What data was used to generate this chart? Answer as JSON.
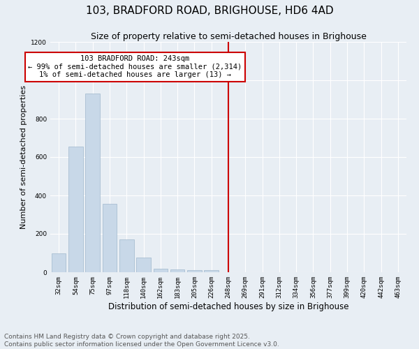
{
  "title": "103, BRADFORD ROAD, BRIGHOUSE, HD6 4AD",
  "subtitle": "Size of property relative to semi-detached houses in Brighouse",
  "xlabel": "Distribution of semi-detached houses by size in Brighouse",
  "ylabel": "Number of semi-detached properties",
  "bins": [
    "32sqm",
    "54sqm",
    "75sqm",
    "97sqm",
    "118sqm",
    "140sqm",
    "162sqm",
    "183sqm",
    "205sqm",
    "226sqm",
    "248sqm",
    "269sqm",
    "291sqm",
    "312sqm",
    "334sqm",
    "356sqm",
    "377sqm",
    "399sqm",
    "420sqm",
    "442sqm",
    "463sqm"
  ],
  "values": [
    100,
    655,
    930,
    355,
    170,
    75,
    20,
    15,
    10,
    10,
    0,
    0,
    0,
    0,
    0,
    0,
    0,
    0,
    0,
    0,
    0
  ],
  "bar_color": "#c8d8e8",
  "bar_edge_color": "#a0b8cc",
  "vline_x_index": 10,
  "vline_color": "#cc0000",
  "annotation_line1": "103 BRADFORD ROAD: 243sqm",
  "annotation_line2": "← 99% of semi-detached houses are smaller (2,314)",
  "annotation_line3": "1% of semi-detached houses are larger (13) →",
  "annotation_box_color": "#ffffff",
  "annotation_edge_color": "#cc0000",
  "ylim": [
    0,
    1200
  ],
  "yticks": [
    0,
    200,
    400,
    600,
    800,
    1000,
    1200
  ],
  "background_color": "#e8eef4",
  "grid_color": "#ffffff",
  "footer_text": "Contains HM Land Registry data © Crown copyright and database right 2025.\nContains public sector information licensed under the Open Government Licence v3.0.",
  "title_fontsize": 11,
  "subtitle_fontsize": 9,
  "xlabel_fontsize": 8.5,
  "ylabel_fontsize": 8,
  "tick_fontsize": 6.5,
  "annotation_fontsize": 7.5,
  "footer_fontsize": 6.5
}
